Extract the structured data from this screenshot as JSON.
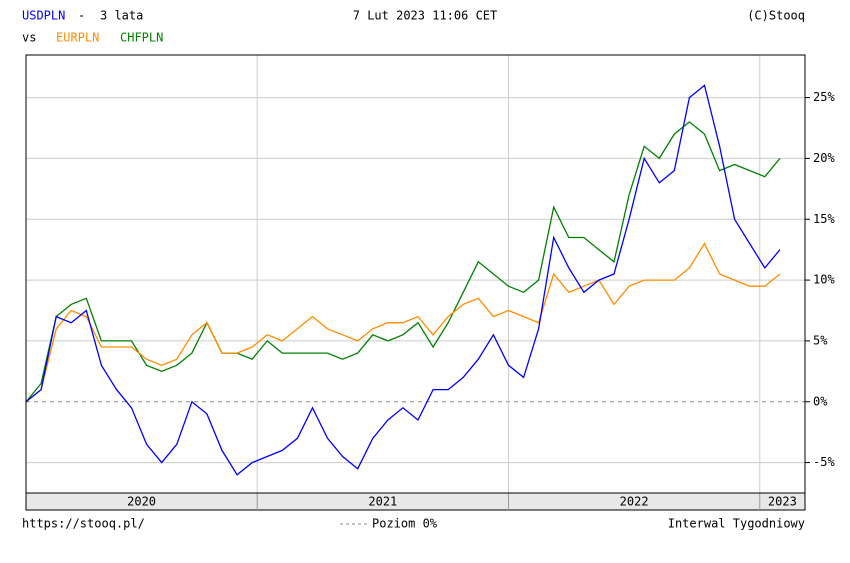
{
  "chart_data": {
    "type": "line",
    "title": "3 lata",
    "title_sep": "-",
    "vs": "vs",
    "date": "7 Lut 2023 11:06 CET",
    "credit": "(C)Stooq",
    "footer_left": "https://stooq.pl/",
    "zero_label": "Poziom 0%",
    "footer_right": "Interwal Tygodniowy",
    "year_labels": [
      "2020",
      "2021",
      "2022",
      "2023"
    ],
    "xlim": [
      2020.08,
      2023.18
    ],
    "xticks": [
      2021,
      2022,
      2023
    ],
    "ylim": [
      -7.5,
      28.5
    ],
    "yticks": [
      {
        "value": -5,
        "label": "-5%"
      },
      {
        "value": 0,
        "label": "0%"
      },
      {
        "value": 5,
        "label": "5%"
      },
      {
        "value": 10,
        "label": "10%"
      },
      {
        "value": 15,
        "label": "15%"
      },
      {
        "value": 20,
        "label": "20%"
      },
      {
        "value": 25,
        "label": "25%"
      }
    ],
    "grid": true,
    "x": [
      2020.08,
      2020.14,
      2020.2,
      2020.26,
      2020.32,
      2020.38,
      2020.44,
      2020.5,
      2020.56,
      2020.62,
      2020.68,
      2020.74,
      2020.8,
      2020.86,
      2020.92,
      2020.98,
      2021.04,
      2021.1,
      2021.16,
      2021.22,
      2021.28,
      2021.34,
      2021.4,
      2021.46,
      2021.52,
      2021.58,
      2021.64,
      2021.7,
      2021.76,
      2021.82,
      2021.88,
      2021.94,
      2022.0,
      2022.06,
      2022.12,
      2022.18,
      2022.24,
      2022.3,
      2022.36,
      2022.42,
      2022.48,
      2022.54,
      2022.6,
      2022.66,
      2022.72,
      2022.78,
      2022.84,
      2022.9,
      2022.96,
      2023.02,
      2023.08
    ],
    "series": [
      {
        "name": "USDPLN",
        "color": "#0000ff",
        "values": [
          0,
          1,
          7,
          6.5,
          7.5,
          3,
          1,
          -0.5,
          -3.5,
          -5,
          -3.5,
          0,
          -1,
          -4,
          -6,
          -5,
          -4.5,
          -4,
          -3,
          -0.5,
          -3,
          -4.5,
          -5.5,
          -3,
          -1.5,
          -0.5,
          -1.5,
          1,
          1,
          2,
          3.5,
          5.5,
          3,
          2,
          6,
          13.5,
          11,
          9,
          10,
          10.5,
          15,
          20,
          18,
          19,
          25,
          26,
          21,
          15,
          13,
          11,
          12.5
        ]
      },
      {
        "name": "EURPLN",
        "color": "#ff8c00",
        "values": [
          0,
          1,
          6,
          7.5,
          7,
          4.5,
          4.5,
          4.5,
          3.5,
          3,
          3.5,
          5.5,
          6.5,
          4,
          4,
          4.5,
          5.5,
          5,
          6,
          7,
          6,
          5.5,
          5,
          6,
          6.5,
          6.5,
          7,
          5.5,
          7,
          8,
          8.5,
          7,
          7.5,
          7,
          6.5,
          10.5,
          9,
          9.5,
          10,
          8,
          9.5,
          10,
          10,
          10,
          11,
          13,
          10.5,
          10,
          9.5,
          9.5,
          10.5
        ]
      },
      {
        "name": "CHFPLN",
        "color": "#008000",
        "values": [
          0,
          1.5,
          7,
          8,
          8.5,
          5,
          5,
          5,
          3,
          2.5,
          3,
          4,
          6.5,
          4,
          4,
          3.5,
          5,
          4,
          4,
          4,
          4,
          3.5,
          4,
          5.5,
          5,
          5.5,
          6.5,
          4.5,
          6.5,
          9,
          11.5,
          10.5,
          9.5,
          9,
          10,
          16,
          13.5,
          13.5,
          12.5,
          11.5,
          17,
          21,
          20,
          22,
          23,
          22,
          19,
          19.5,
          19,
          18.5,
          20
        ]
      }
    ]
  }
}
